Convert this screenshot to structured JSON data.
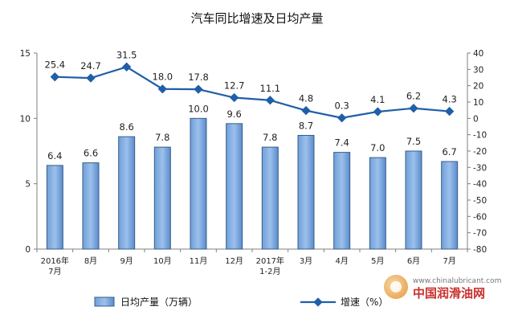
{
  "chart_data": {
    "type": "bar+line",
    "title": "汽车同比增速及日均产量",
    "categories": [
      "2016年\n7月",
      "8月",
      "9月",
      "10月",
      "11月",
      "12月",
      "2017年\n1-2月",
      "3月",
      "4月",
      "5月",
      "6月",
      "7月"
    ],
    "series": [
      {
        "name": "日均产量（万辆）",
        "type": "bar",
        "axis": "left",
        "values": [
          6.4,
          6.6,
          8.6,
          7.8,
          10.0,
          9.6,
          7.8,
          8.7,
          7.4,
          7.0,
          7.5,
          6.7
        ],
        "labels": [
          "6.4",
          "6.6",
          "8.6",
          "7.8",
          "10.0",
          "9.6",
          "7.8",
          "8.7",
          "7.4",
          "7.0",
          "7.5",
          "6.7"
        ]
      },
      {
        "name": "增速（%）",
        "type": "line",
        "axis": "right",
        "values": [
          25.4,
          24.7,
          31.5,
          18.0,
          17.8,
          12.7,
          11.1,
          4.8,
          0.3,
          4.1,
          6.2,
          4.3
        ],
        "labels": [
          "25.4",
          "24.7",
          "31.5",
          "18.0",
          "17.8",
          "12.7",
          "11.1",
          "4.8",
          "0.3",
          "4.1",
          "6.2",
          "4.3"
        ]
      }
    ],
    "y_left": {
      "min": 0,
      "max": 15,
      "ticks": [
        0,
        5,
        10,
        15
      ]
    },
    "y_right": {
      "min": -80,
      "max": 40,
      "ticks": [
        40,
        30,
        20,
        10,
        0,
        -10,
        -20,
        -30,
        -40,
        -50,
        -60,
        -70,
        -80
      ]
    },
    "grid": false,
    "legend_position": "bottom",
    "colors": {
      "bar_fill": "#4f81bd",
      "bar_stroke": "#385d8a",
      "line": "#1f5fa8"
    }
  },
  "watermark": {
    "url": "www.chinalubricant.com",
    "name": "中国润滑油网"
  }
}
